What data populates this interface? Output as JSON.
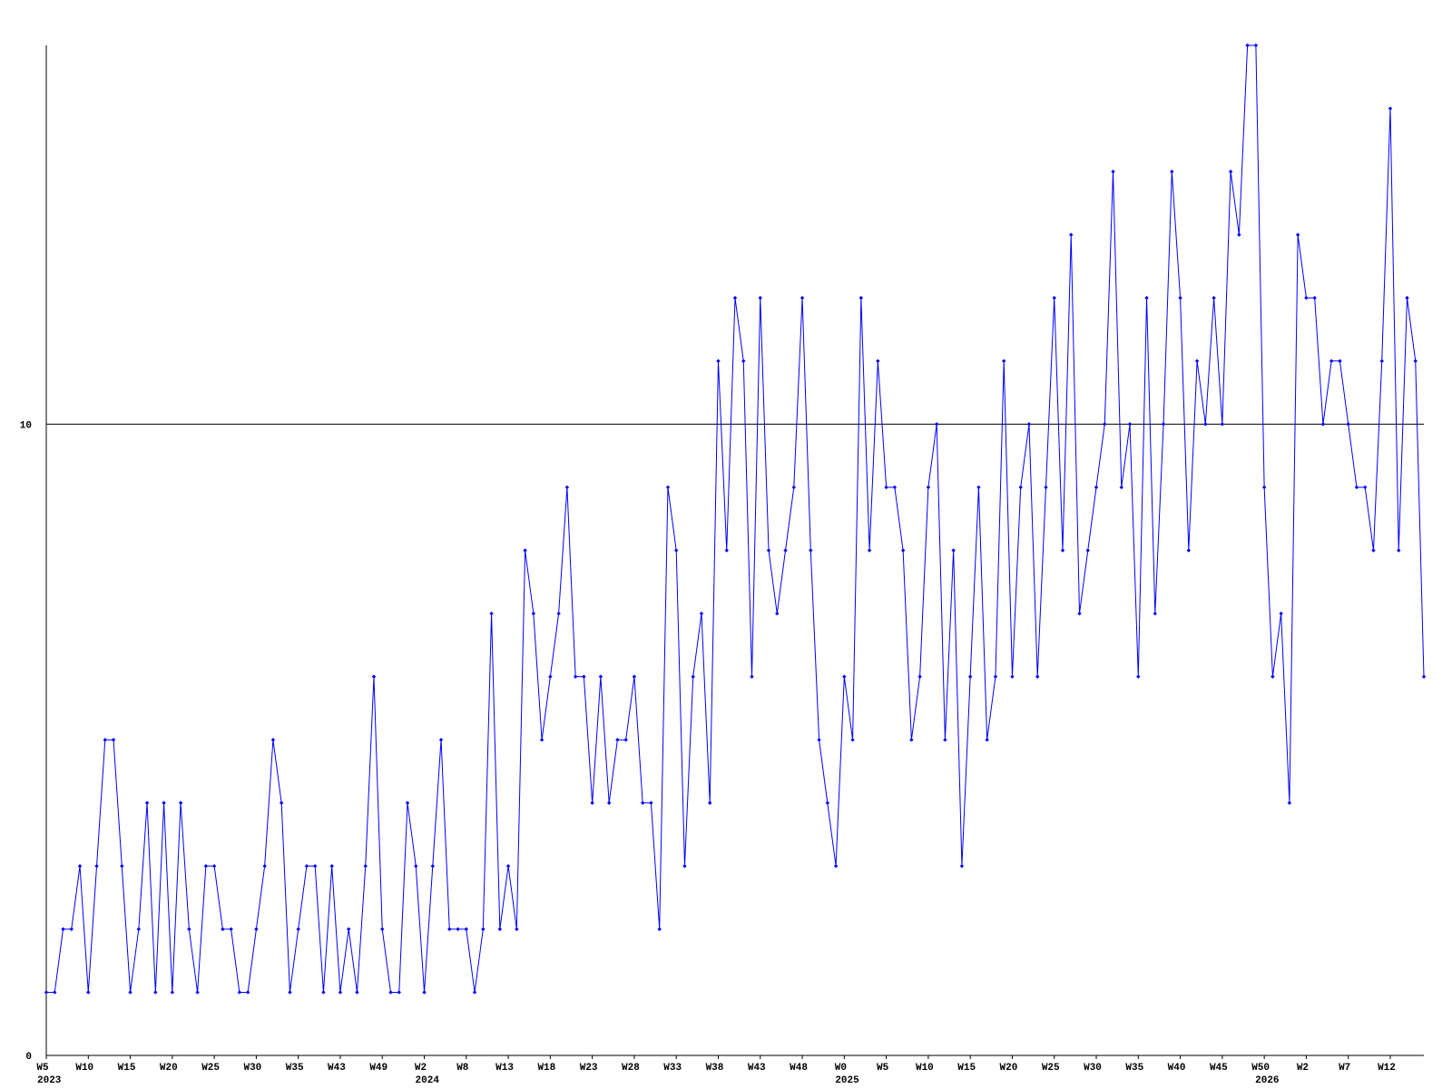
{
  "chart_data": {
    "type": "line",
    "categories": [
      "W5",
      null,
      null,
      null,
      null,
      "W10",
      null,
      null,
      null,
      null,
      "W15",
      null,
      null,
      null,
      null,
      "W20",
      null,
      null,
      null,
      null,
      "W25",
      null,
      null,
      null,
      null,
      "W30",
      null,
      null,
      null,
      null,
      "W35",
      null,
      null,
      null,
      null,
      "W43",
      null,
      null,
      null,
      null,
      "W49",
      null,
      null,
      null,
      null,
      "W2",
      null,
      null,
      null,
      null,
      "W8",
      null,
      null,
      null,
      null,
      "W13",
      null,
      null,
      null,
      null,
      "W18",
      null,
      null,
      null,
      null,
      "W23",
      null,
      null,
      null,
      null,
      "W28",
      null,
      null,
      null,
      null,
      "W33",
      null,
      null,
      null,
      null,
      "W38",
      null,
      null,
      null,
      null,
      "W43",
      null,
      null,
      null,
      null,
      "W48",
      null,
      null,
      null,
      null,
      "W0",
      null,
      null,
      null,
      null,
      "W5",
      null,
      null,
      null,
      null,
      "W10",
      null,
      null,
      null,
      null,
      "W15",
      null,
      null,
      null,
      null,
      "W20",
      null,
      null,
      null,
      null,
      "W25",
      null,
      null,
      null,
      null,
      "W30",
      null,
      null,
      null,
      null,
      "W35",
      null,
      null,
      null,
      null,
      "W40",
      null,
      null,
      null,
      null,
      "W45",
      null,
      null,
      null,
      null,
      "W50",
      null,
      null,
      null,
      null,
      "W2",
      null,
      null,
      null,
      null,
      "W7",
      null,
      null,
      null,
      null,
      "W12",
      null,
      null,
      null,
      null
    ],
    "category_groups": [
      "2023",
      null,
      null,
      null,
      null,
      null,
      null,
      null,
      null,
      null,
      null,
      null,
      null,
      null,
      null,
      null,
      null,
      null,
      null,
      null,
      null,
      null,
      null,
      null,
      null,
      null,
      null,
      null,
      null,
      null,
      null,
      null,
      null,
      null,
      null,
      null,
      null,
      null,
      null,
      null,
      null,
      null,
      null,
      null,
      null,
      "2024",
      null,
      null,
      null,
      null,
      null,
      null,
      null,
      null,
      null,
      null,
      null,
      null,
      null,
      null,
      null,
      null,
      null,
      null,
      null,
      null,
      null,
      null,
      null,
      null,
      null,
      null,
      null,
      null,
      null,
      null,
      null,
      null,
      null,
      null,
      null,
      null,
      null,
      null,
      null,
      null,
      null,
      null,
      null,
      null,
      null,
      null,
      null,
      null,
      null,
      "2025",
      null,
      null,
      null,
      null,
      null,
      null,
      null,
      null,
      null,
      null,
      null,
      null,
      null,
      null,
      null,
      null,
      null,
      null,
      null,
      null,
      null,
      null,
      null,
      null,
      null,
      null,
      null,
      null,
      null,
      null,
      null,
      null,
      null,
      null,
      null,
      null,
      null,
      null,
      null,
      null,
      null,
      null,
      null,
      null,
      null,
      null,
      null,
      null,
      null,
      "2026",
      null,
      null,
      null,
      null,
      null,
      null,
      null,
      null,
      null,
      null,
      null,
      null,
      null,
      null
    ],
    "values": [
      1,
      1,
      2,
      2,
      3,
      1,
      3,
      5,
      5,
      3,
      1,
      2,
      4,
      1,
      4,
      1,
      4,
      2,
      1,
      3,
      3,
      2,
      2,
      1,
      1,
      2,
      3,
      5,
      4,
      1,
      2,
      3,
      3,
      1,
      3,
      1,
      2,
      1,
      3,
      6,
      2,
      1,
      1,
      4,
      3,
      1,
      3,
      5,
      2,
      2,
      2,
      1,
      2,
      7,
      2,
      3,
      2,
      8,
      7,
      5,
      6,
      7,
      9,
      6,
      6,
      4,
      6,
      4,
      5,
      5,
      6,
      4,
      4,
      2,
      9,
      8,
      3,
      6,
      7,
      4,
      11,
      8,
      12,
      11,
      6,
      12,
      8,
      7,
      8,
      9,
      12,
      8,
      5,
      4,
      3,
      6,
      5,
      12,
      8,
      11,
      9,
      9,
      8,
      5,
      6,
      9,
      10,
      5,
      8,
      3,
      6,
      9,
      5,
      6,
      11,
      6,
      9,
      10,
      6,
      9,
      12,
      8,
      13,
      7,
      8,
      9,
      10,
      14,
      9,
      10,
      6,
      12,
      7,
      10,
      14,
      12,
      8,
      11,
      10,
      12,
      10,
      14,
      13,
      16,
      16,
      9,
      6,
      7,
      4,
      13,
      12,
      12,
      10,
      11,
      11,
      10,
      9,
      9,
      8,
      11,
      15,
      8,
      12,
      11,
      6
    ],
    "color": "#0000ff",
    "ylim": [
      0,
      16
    ],
    "yticks": [
      0,
      10
    ],
    "grid": true
  }
}
